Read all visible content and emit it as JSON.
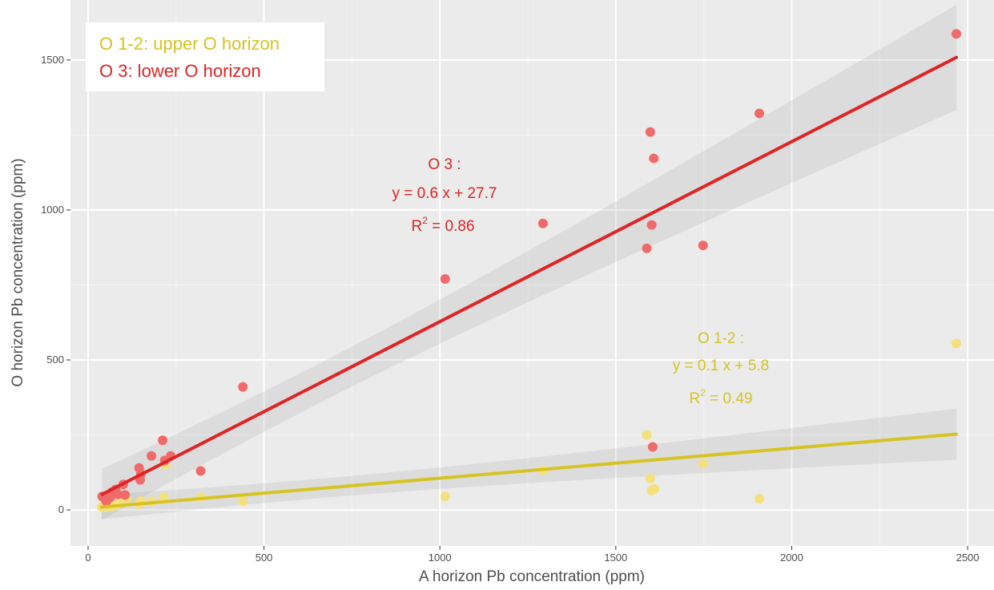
{
  "chart_data": {
    "type": "scatter",
    "xlabel": "A horizon Pb concentration (ppm)",
    "ylabel": "O horizon Pb concentration (ppm)",
    "xlim": [
      -50,
      2575
    ],
    "ylim": [
      -120,
      1700
    ],
    "x_ticks": [
      0,
      500,
      1000,
      1500,
      2000,
      2500
    ],
    "y_ticks": [
      0,
      500,
      1000,
      1500
    ],
    "grid": true,
    "legend_position": "top-left",
    "series": [
      {
        "name": "O 3: lower O horizon",
        "color": "#f16a6a",
        "line_color": "#de2424",
        "points": [
          [
            40,
            45
          ],
          [
            47,
            38
          ],
          [
            52,
            28
          ],
          [
            58,
            50
          ],
          [
            63,
            42
          ],
          [
            68,
            60
          ],
          [
            72,
            55
          ],
          [
            78,
            68
          ],
          [
            85,
            52
          ],
          [
            100,
            85
          ],
          [
            105,
            50
          ],
          [
            145,
            140
          ],
          [
            148,
            100
          ],
          [
            150,
            120
          ],
          [
            180,
            180
          ],
          [
            212,
            232
          ],
          [
            218,
            165
          ],
          [
            235,
            180
          ],
          [
            320,
            130
          ],
          [
            440,
            410
          ],
          [
            1015,
            770
          ],
          [
            1293,
            955
          ],
          [
            1588,
            872
          ],
          [
            1598,
            1260
          ],
          [
            1602,
            950
          ],
          [
            1608,
            1172
          ],
          [
            1605,
            210
          ],
          [
            1748,
            882
          ],
          [
            1908,
            1322
          ],
          [
            2468,
            1587
          ]
        ],
        "fit": {
          "slope": 0.6,
          "intercept": 27.7
        },
        "annotation": {
          "label": "O 3 :",
          "equation": "y = 0.6 x + 27.7",
          "r2_prefix": "R",
          "r2_sup": "2",
          "r2_value": " = 0.86"
        }
      },
      {
        "name": "O 1-2: upper O horizon",
        "color": "#f4e07c",
        "line_color": "#d6c321",
        "points": [
          [
            38,
            10
          ],
          [
            45,
            15
          ],
          [
            50,
            8
          ],
          [
            55,
            12
          ],
          [
            60,
            20
          ],
          [
            65,
            10
          ],
          [
            72,
            18
          ],
          [
            80,
            15
          ],
          [
            90,
            22
          ],
          [
            100,
            28
          ],
          [
            110,
            35
          ],
          [
            145,
            20
          ],
          [
            150,
            30
          ],
          [
            182,
            28
          ],
          [
            220,
            150
          ],
          [
            215,
            42
          ],
          [
            320,
            42
          ],
          [
            440,
            30
          ],
          [
            1015,
            45
          ],
          [
            1293,
            132
          ],
          [
            1588,
            250
          ],
          [
            1598,
            105
          ],
          [
            1602,
            65
          ],
          [
            1610,
            70
          ],
          [
            1748,
            155
          ],
          [
            1908,
            37
          ],
          [
            2468,
            555
          ]
        ],
        "fit": {
          "slope": 0.1,
          "intercept": 5.8
        },
        "annotation": {
          "label": "O 1-2 :",
          "equation": "y = 0.1 x + 5.8",
          "r2_prefix": "R",
          "r2_sup": "2",
          "r2_value": " = 0.49"
        }
      }
    ]
  }
}
